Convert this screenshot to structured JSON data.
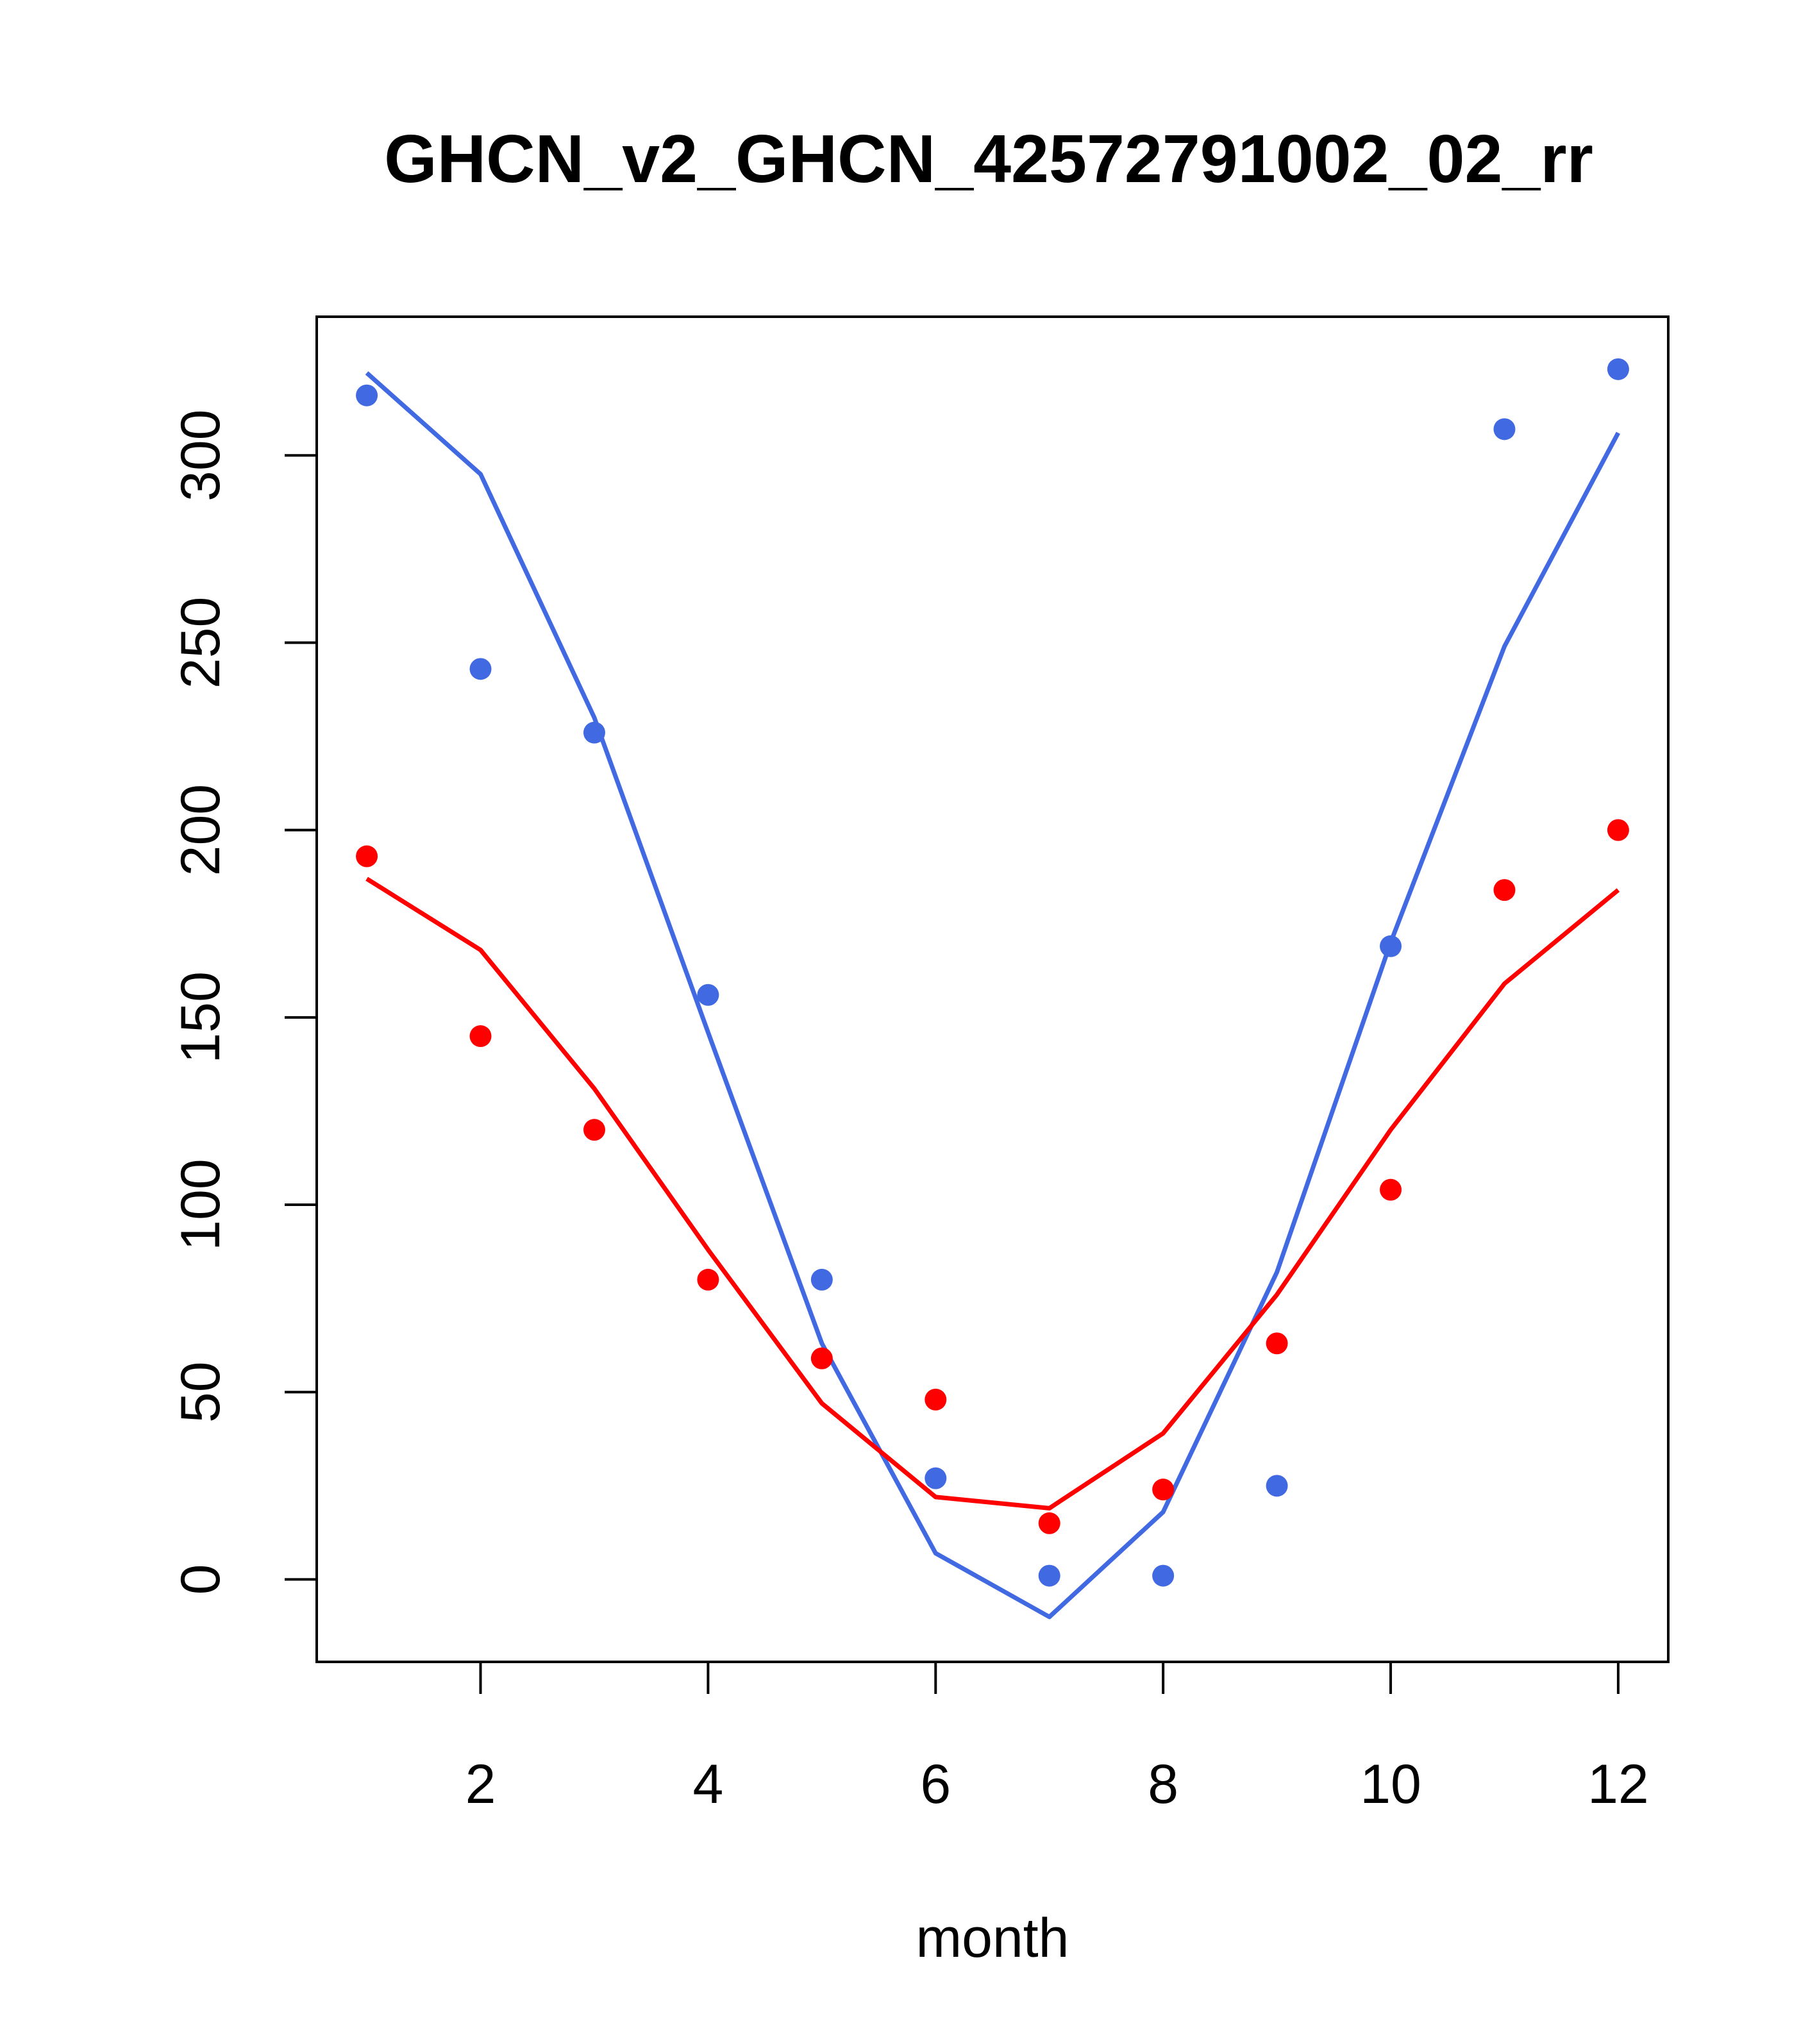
{
  "chart_data": {
    "type": "line",
    "title": "GHCN_v2_GHCN_42572791002_02_rr",
    "xlabel": "month",
    "ylabel": "",
    "xlim": [
      0.56,
      12.44
    ],
    "ylim": [
      -22,
      337
    ],
    "x_ticks": [
      2,
      4,
      6,
      8,
      10,
      12
    ],
    "y_ticks": [
      0,
      50,
      100,
      150,
      200,
      250,
      300
    ],
    "grid": false,
    "legend": "none",
    "x": [
      1,
      2,
      3,
      4,
      5,
      6,
      7,
      8,
      9,
      10,
      11,
      12
    ],
    "series": [
      {
        "color": "#4169e1",
        "points": [
          316,
          243,
          226,
          156,
          80,
          27,
          1,
          1,
          25,
          169,
          307,
          323
        ],
        "line": [
          322,
          295,
          230,
          146,
          63,
          7,
          -10,
          18,
          82,
          170,
          249,
          306
        ]
      },
      {
        "color": "#ff0000",
        "points": [
          193,
          145,
          120,
          80,
          59,
          48,
          15,
          24,
          63,
          104,
          184,
          200
        ],
        "line": [
          187,
          168,
          131,
          88,
          47,
          22,
          19,
          39,
          76,
          120,
          159,
          184
        ]
      }
    ]
  }
}
